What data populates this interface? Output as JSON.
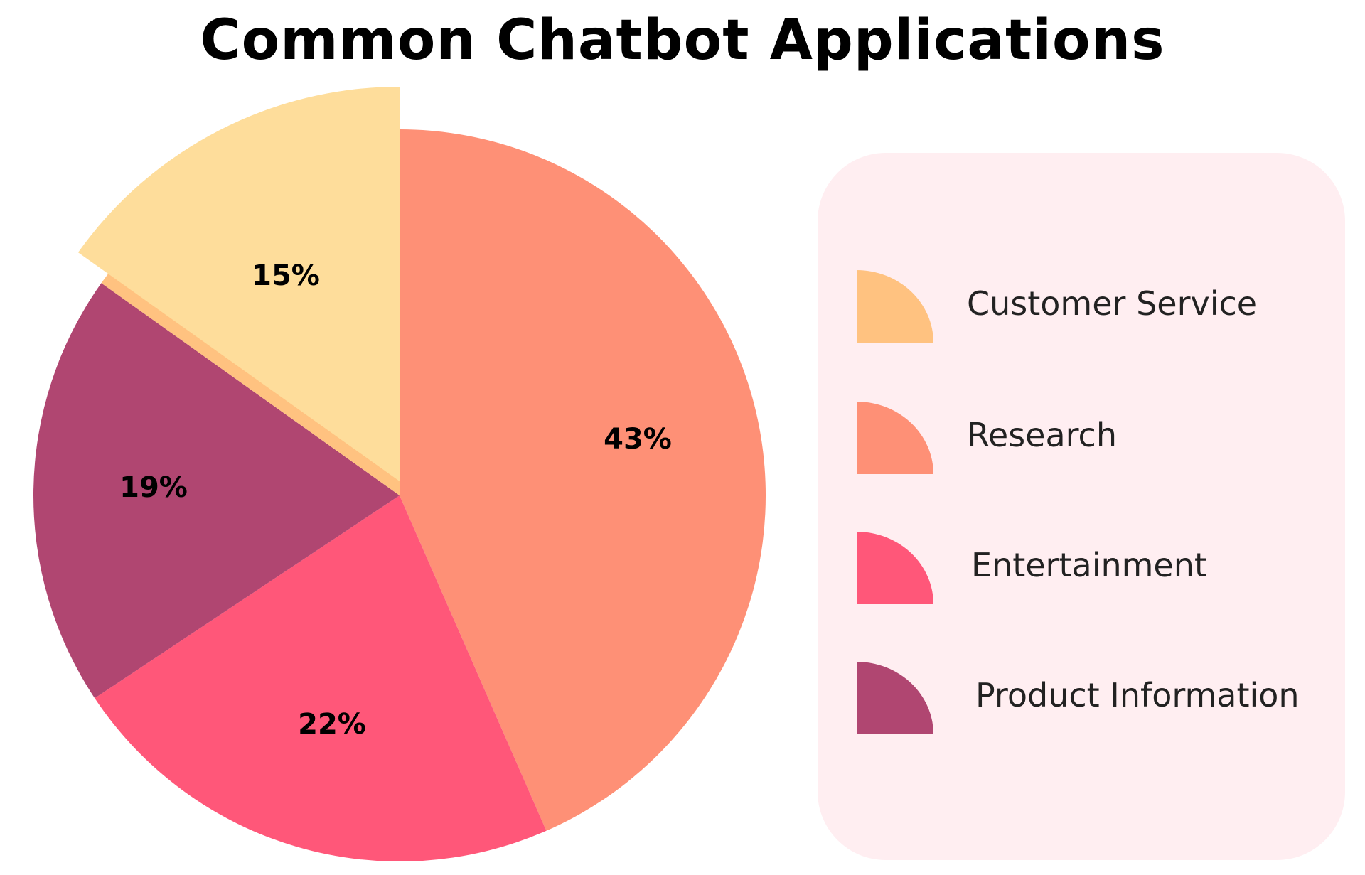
{
  "chart_data": {
    "type": "pie",
    "title": "Common Chatbot Applications",
    "slices": [
      {
        "name": "Customer Service",
        "value": 15,
        "label": "15%",
        "color": "#fedd9b",
        "exploded": true
      },
      {
        "name": "Research",
        "value": 43,
        "label": "43%",
        "color": "#fe9076"
      },
      {
        "name": "Entertainment",
        "value": 22,
        "label": "22%",
        "color": "#ff5779"
      },
      {
        "name": "Product Information",
        "value": 19,
        "label": "19%",
        "color": "#b04671"
      }
    ],
    "legend": {
      "placement": "right",
      "items": [
        {
          "label": "Customer Service",
          "color": "#ffc280"
        },
        {
          "label": "Research",
          "color": "#fe9076"
        },
        {
          "label": "Entertainment",
          "color": "#ff5779"
        },
        {
          "label": "Product Information",
          "color": "#b04671"
        }
      ]
    }
  }
}
